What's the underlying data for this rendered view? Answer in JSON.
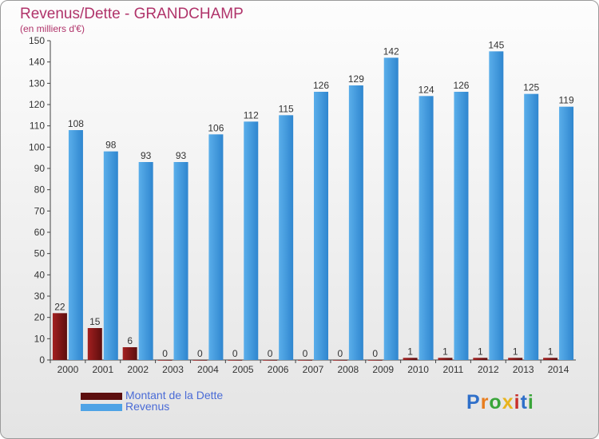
{
  "title": "Revenus/Dette - GRANDCHAMP",
  "subtitle": "(en milliers d'€)",
  "chart_data": {
    "type": "bar",
    "categories": [
      "2000",
      "2001",
      "2002",
      "2003",
      "2004",
      "2005",
      "2006",
      "2007",
      "2008",
      "2009",
      "2010",
      "2011",
      "2012",
      "2013",
      "2014"
    ],
    "series": [
      {
        "name": "Montant de la Dette",
        "color": "#8b1a1a",
        "values": [
          22,
          15,
          6,
          0,
          0,
          0,
          0,
          0,
          0,
          0,
          1,
          1,
          1,
          1,
          1
        ]
      },
      {
        "name": "Revenus",
        "color": "#4ea3e6",
        "values": [
          108,
          98,
          93,
          93,
          106,
          112,
          115,
          126,
          129,
          142,
          124,
          126,
          145,
          125,
          119
        ]
      }
    ],
    "ylim": [
      0,
      150
    ],
    "yticks": [
      0,
      10,
      20,
      30,
      40,
      50,
      60,
      70,
      80,
      90,
      100,
      110,
      120,
      130,
      140,
      150
    ],
    "grid": false,
    "legend_position": "bottom-left"
  },
  "legend": [
    {
      "label": "Montant de la Dette",
      "color": "#5c0e0e"
    },
    {
      "label": "Revenus",
      "color": "#4ea3e6"
    }
  ],
  "logo": {
    "letters": [
      "P",
      "r",
      "o",
      "x",
      "i",
      "t",
      "i"
    ],
    "colors": [
      "#2f6fc9",
      "#e87d1e",
      "#3aa53a",
      "#e8b41e",
      "#c8302c",
      "#2f6fc9",
      "#3aa53a"
    ]
  }
}
